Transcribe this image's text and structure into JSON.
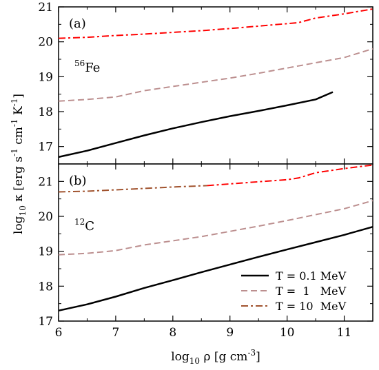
{
  "figure": {
    "xlabel_main": "log",
    "xlabel_sub": "10",
    "xlabel_rest": " ρ [g cm",
    "xlabel_sup": "-3",
    "xlabel_close": "]",
    "ylabel_main": "log",
    "ylabel_sub": "10",
    "ylabel_rest1": " κ [erg s",
    "ylabel_sup1": "-1",
    "ylabel_rest2": " cm",
    "ylabel_sup2": "-1",
    "ylabel_rest3": " K",
    "ylabel_sup3": "-1",
    "ylabel_close": "]"
  },
  "legend": {
    "items": [
      {
        "label": "T = 0.1 MeV",
        "color": "#000000",
        "dash": "solid"
      },
      {
        "label": "T =  1   MeV",
        "color": "#bc8f8f",
        "dash": "dashed"
      },
      {
        "label": "T = 10  MeV",
        "color": "#a0522d",
        "dash": "dashdot"
      }
    ]
  },
  "chart_data": [
    {
      "type": "line",
      "panel": "(a)",
      "element_mass": "56",
      "element_symbol": "Fe",
      "xlim": [
        6,
        11.5
      ],
      "ylim": [
        16.5,
        21
      ],
      "xticks": [
        6,
        7,
        8,
        9,
        10,
        11
      ],
      "yticks": [
        17,
        18,
        19,
        20,
        21
      ],
      "series": [
        {
          "color": "#000000",
          "dash": "solid",
          "x": [
            6,
            6.5,
            7,
            7.5,
            8,
            8.5,
            9,
            9.5,
            10,
            10.5,
            10.8
          ],
          "y": [
            16.7,
            16.88,
            17.1,
            17.32,
            17.52,
            17.7,
            17.87,
            18.02,
            18.18,
            18.35,
            18.56
          ]
        },
        {
          "color": "#bc8f8f",
          "dash": "dashed",
          "x": [
            6,
            6.5,
            7,
            7.5,
            8,
            8.5,
            9,
            9.5,
            10,
            10.5,
            11,
            11.5
          ],
          "y": [
            18.3,
            18.35,
            18.42,
            18.6,
            18.72,
            18.84,
            18.96,
            19.1,
            19.25,
            19.4,
            19.55,
            19.8
          ]
        },
        {
          "color": "#ff0000",
          "dash": "dashdot",
          "x": [
            6,
            6.5,
            7,
            7.5,
            8,
            8.5,
            9,
            9.5,
            10,
            10.2,
            10.5,
            11,
            11.5
          ],
          "y": [
            20.1,
            20.13,
            20.18,
            20.22,
            20.27,
            20.32,
            20.38,
            20.45,
            20.52,
            20.55,
            20.68,
            20.8,
            20.94
          ]
        }
      ]
    },
    {
      "type": "line",
      "panel": "(b)",
      "element_mass": "12",
      "element_symbol": "C",
      "xlim": [
        6,
        11.5
      ],
      "ylim": [
        17,
        21.5
      ],
      "xticks": [
        6,
        7,
        8,
        9,
        10,
        11
      ],
      "yticks": [
        17,
        18,
        19,
        20,
        21
      ],
      "series": [
        {
          "color": "#000000",
          "dash": "solid",
          "x": [
            6,
            6.5,
            7,
            7.5,
            8,
            8.5,
            9,
            9.5,
            10,
            10.5,
            11,
            11.5
          ],
          "y": [
            17.3,
            17.48,
            17.7,
            17.95,
            18.17,
            18.4,
            18.62,
            18.84,
            19.05,
            19.26,
            19.47,
            19.7
          ]
        },
        {
          "color": "#bc8f8f",
          "dash": "dashed",
          "x": [
            6,
            6.5,
            7,
            7.5,
            8,
            8.5,
            9,
            9.5,
            10,
            10.5,
            11,
            11.5
          ],
          "y": [
            18.9,
            18.94,
            19.02,
            19.18,
            19.3,
            19.42,
            19.57,
            19.72,
            19.88,
            20.05,
            20.22,
            20.45
          ]
        },
        {
          "color": "#a0522d",
          "dash": "dashdot",
          "x": [
            6,
            6.5,
            7,
            7.5,
            8,
            8.6
          ],
          "y": [
            20.7,
            20.72,
            20.76,
            20.8,
            20.84,
            20.88
          ]
        },
        {
          "color": "#ff0000",
          "dash": "dashdot",
          "x": [
            8.6,
            9,
            9.5,
            10,
            10.2,
            10.5,
            11,
            11.5
          ],
          "y": [
            20.88,
            20.93,
            20.99,
            21.05,
            21.1,
            21.25,
            21.37,
            21.47
          ]
        }
      ]
    }
  ]
}
